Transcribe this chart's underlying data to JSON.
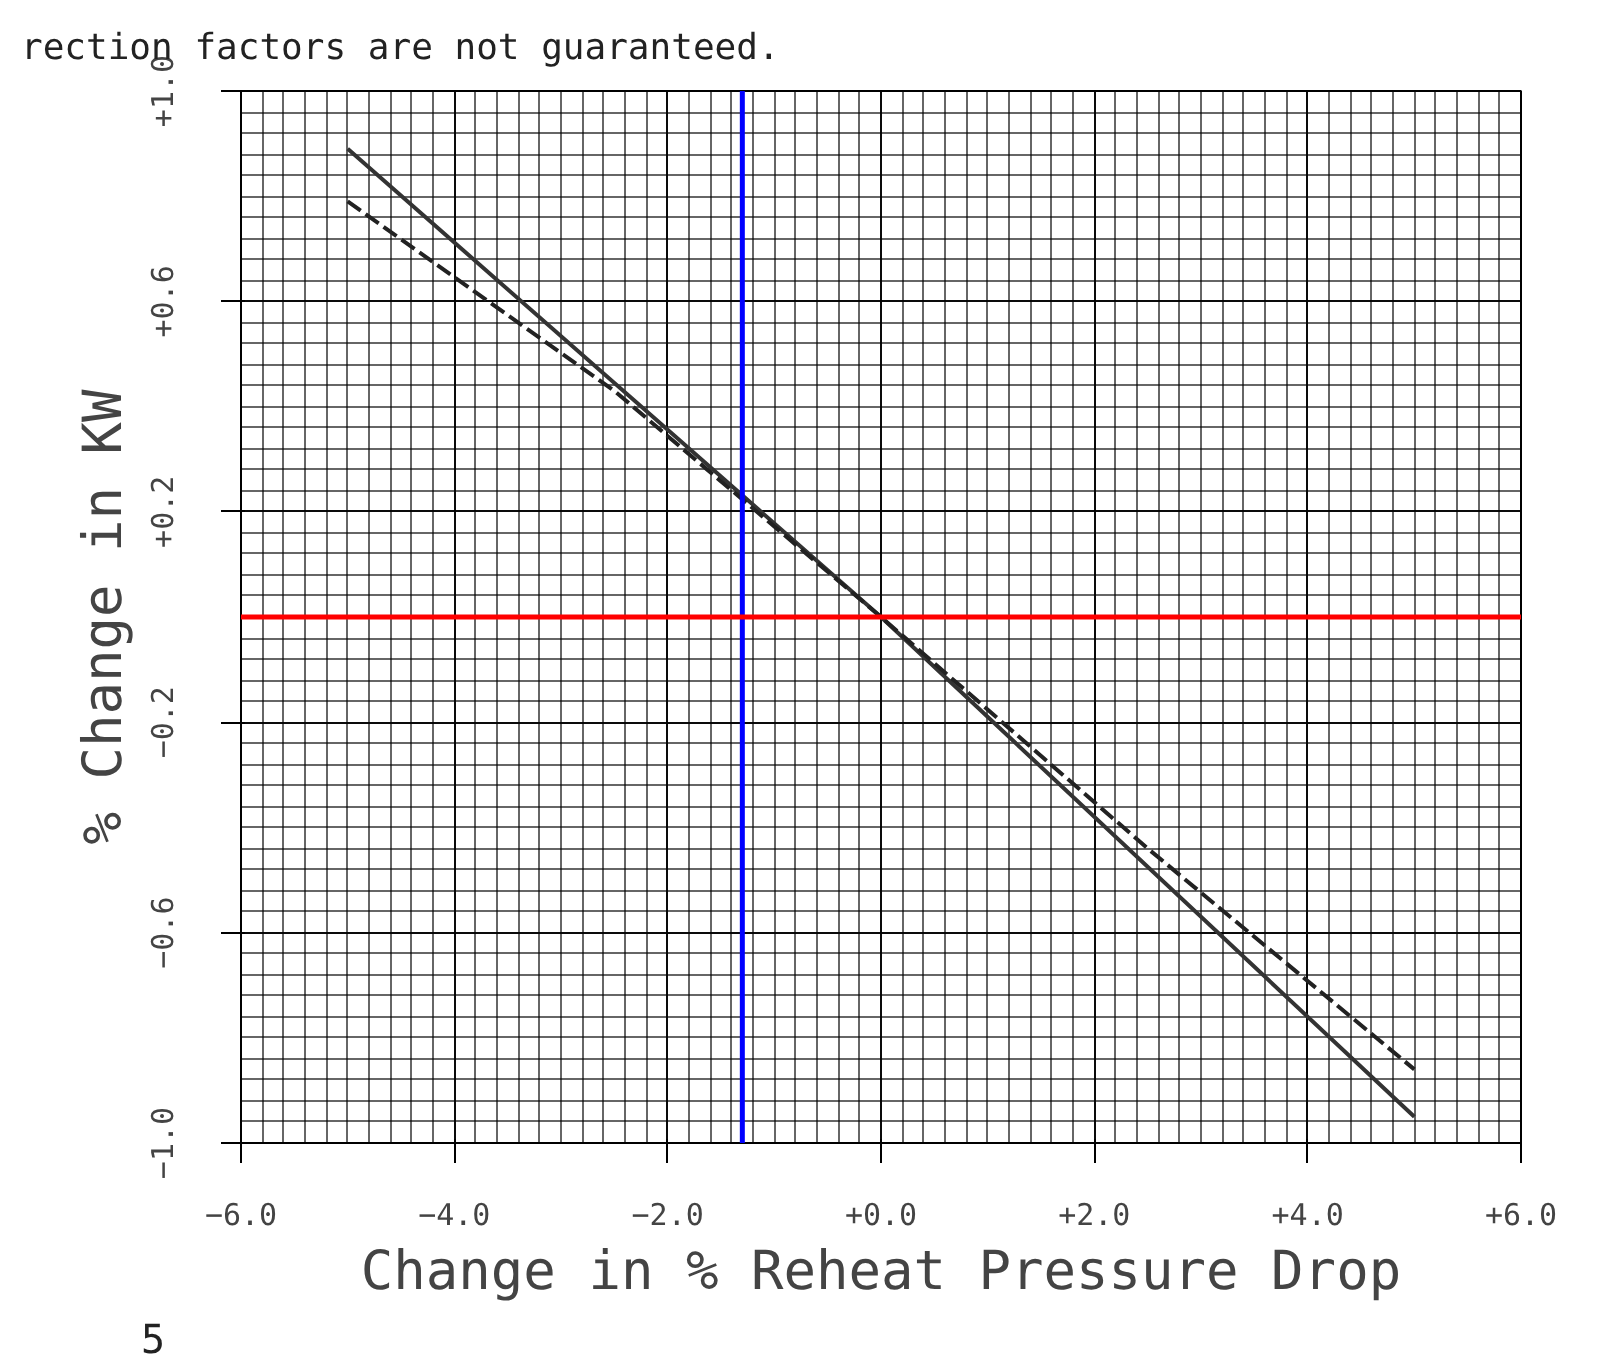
{
  "chart_data": {
    "type": "line",
    "xlabel": "Change in % Reheat Pressure Drop",
    "ylabel": "% Change in KW",
    "annotations": [
      "rection factors are not guaranteed.",
      "5"
    ],
    "series": [
      {
        "color": "#333333",
        "line_style": "solid",
        "x": [
          -5,
          0,
          5
        ],
        "values": [
          0.89,
          0,
          -0.95
        ]
      },
      {
        "color": "#222222",
        "line_style": "dashed",
        "x": [
          -5,
          -2.5,
          0,
          2.5,
          5
        ],
        "values": [
          0.79,
          0.43,
          0,
          -0.44,
          -0.86
        ]
      }
    ],
    "xlim": [
      -6,
      6
    ],
    "ylim": [
      -1.0,
      1.0
    ],
    "xticks": [
      {
        "value": -6,
        "label": "−6.0"
      },
      {
        "value": -4,
        "label": "−4.0"
      },
      {
        "value": -2,
        "label": "−2.0"
      },
      {
        "value": 0,
        "label": "+0.0"
      },
      {
        "value": 2,
        "label": "+2.0"
      },
      {
        "value": 4,
        "label": "+4.0"
      },
      {
        "value": 6,
        "label": "+6.0"
      }
    ],
    "yticks": [
      {
        "value": -1.0,
        "label": "−1.0"
      },
      {
        "value": -0.6,
        "label": "−0.6"
      },
      {
        "value": -0.2,
        "label": "−0.2"
      },
      {
        "value": 0.2,
        "label": "+0.2"
      },
      {
        "value": 0.6,
        "label": "+0.6"
      },
      {
        "value": 1.0,
        "label": "+1.0"
      }
    ],
    "ref_lines": [
      {
        "axis": "x",
        "value": -1.3,
        "color": "#0000ff"
      },
      {
        "axis": "y",
        "value": 0,
        "color": "#ff0000"
      }
    ],
    "grid": true,
    "marker": "none"
  }
}
